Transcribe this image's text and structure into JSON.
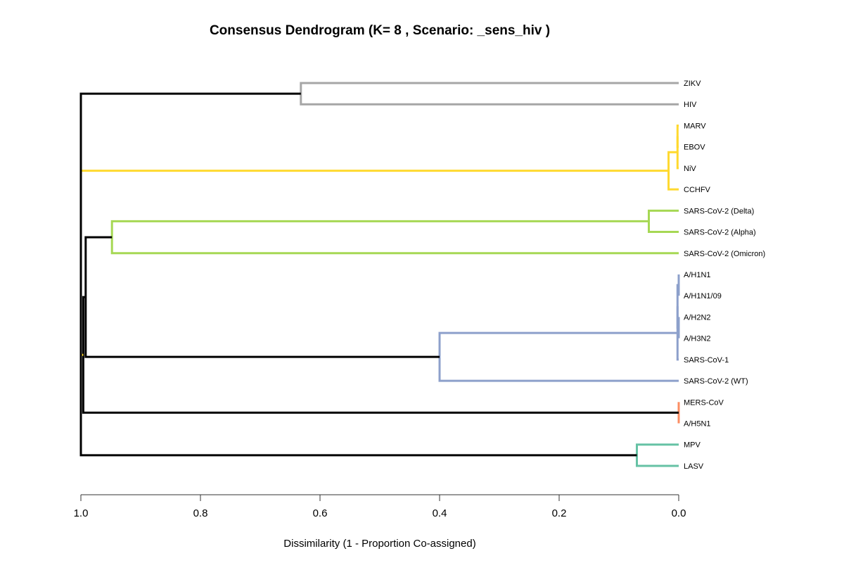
{
  "chart_data": {
    "type": "dendrogram",
    "title": "Consensus Dendrogram (K= 8 , Scenario:  _sens_hiv )",
    "xlabel": "Dissimilarity (1 - Proportion Co-assigned)",
    "xlim": [
      1.0,
      0.0
    ],
    "x_ticks": [
      "1.0",
      "0.8",
      "0.6",
      "0.4",
      "0.2",
      "0.0"
    ],
    "x_tick_values": [
      1.0,
      0.8,
      0.6,
      0.4,
      0.2,
      0.0
    ],
    "leaves": [
      {
        "label": "ZIKV",
        "color": "#A6A6A6"
      },
      {
        "label": "HIV",
        "color": "#E2BE80"
      },
      {
        "label": "MARV",
        "color": "#FFD92F"
      },
      {
        "label": "EBOV",
        "color": "#FFD92F"
      },
      {
        "label": "NiV",
        "color": "#FFD92F"
      },
      {
        "label": "CCHFV",
        "color": "#FFD92F"
      },
      {
        "label": "SARS-CoV-2 (Delta)",
        "color": "#A6D854"
      },
      {
        "label": "SARS-CoV-2 (Alpha)",
        "color": "#A6D854"
      },
      {
        "label": "SARS-CoV-2 (Omicron)",
        "color": "#E78AC3"
      },
      {
        "label": "A/H1N1",
        "color": "#8DA0CB"
      },
      {
        "label": "A/H1N1/09",
        "color": "#8DA0CB"
      },
      {
        "label": "A/H2N2",
        "color": "#8DA0CB"
      },
      {
        "label": "A/H3N2",
        "color": "#8DA0CB"
      },
      {
        "label": "SARS-CoV-1",
        "color": "#8DA0CB"
      },
      {
        "label": "SARS-CoV-2 (WT)",
        "color": "#8DA0CB"
      },
      {
        "label": "MERS-CoV",
        "color": "#FC8D62"
      },
      {
        "label": "A/H5N1",
        "color": "#FC8D62"
      },
      {
        "label": "MPV",
        "color": "#66C2A5"
      },
      {
        "label": "LASV",
        "color": "#66C2A5"
      }
    ],
    "merges": [
      {
        "left": "A/H1N1",
        "right": "A/H1N1/09",
        "height": 0.0,
        "color": "#8DA0CB"
      },
      {
        "left": "MERS-CoV",
        "right": "A/H5N1",
        "height": 0.0,
        "color": "#FC8D62"
      },
      {
        "left": "A/H2N2",
        "right": "A/H3N2",
        "height": 0.0,
        "color": "#8DA0CB"
      },
      {
        "left": "MARV",
        "right": "EBOV",
        "height": 0.002,
        "color": "#FFD92F"
      },
      {
        "left": "m1",
        "right": "m3",
        "height": 0.002,
        "color": "#8DA0CB"
      },
      {
        "left": "m4",
        "right": "NiV",
        "height": 0.002,
        "color": "#FFD92F"
      },
      {
        "left": "m5",
        "right": "SARS-CoV-1",
        "height": 0.002,
        "color": "#8DA0CB"
      },
      {
        "left": "m6",
        "right": "CCHFV",
        "height": 0.017,
        "color": "#FFD92F"
      },
      {
        "left": "SARS-CoV-2 (Delta)",
        "right": "SARS-CoV-2 (Alpha)",
        "height": 0.05,
        "color": "#A6D854"
      },
      {
        "left": "MPV",
        "right": "LASV",
        "height": 0.07,
        "color": "#66C2A5"
      },
      {
        "left": "m7",
        "right": "SARS-CoV-2 (WT)",
        "height": 0.4,
        "color": "#8DA0CB"
      },
      {
        "left": "ZIKV",
        "right": "HIV",
        "height": 0.632,
        "color": "#A6A6A6"
      },
      {
        "left": "m9",
        "right": "SARS-CoV-2 (Omicron)",
        "height": 0.948,
        "color": "#A6D854"
      },
      {
        "left": "m13",
        "right": "m11",
        "height": 0.992,
        "color": "#000000"
      },
      {
        "left": "m14",
        "right": "m2",
        "height": 0.996,
        "color": "#000000"
      },
      {
        "left": "m8",
        "right": "m15",
        "height": 1.0,
        "color": "#FFD92F"
      },
      {
        "left": "m12",
        "right": "m16",
        "height": 1.0,
        "color": "#000000"
      },
      {
        "left": "m17",
        "right": "m10",
        "height": 1.0,
        "color": "#000000"
      }
    ]
  }
}
